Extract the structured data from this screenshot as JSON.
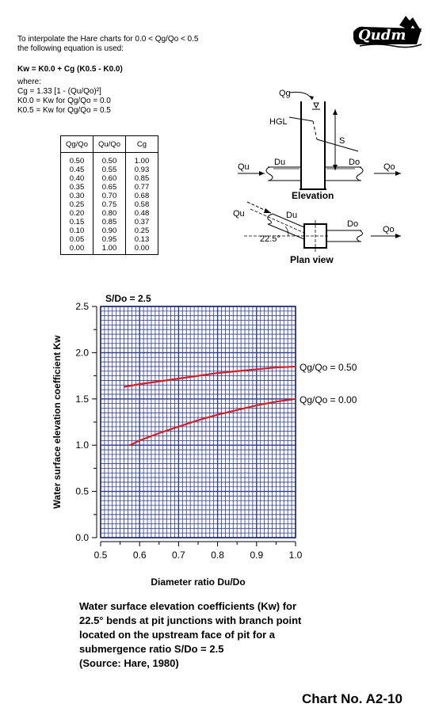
{
  "header": {
    "logo_text": "Qudm",
    "intro_line1": "To interpolate the Hare charts for 0.0 < Qg/Qo < 0.5",
    "intro_line2": "the following equation is used:",
    "equation": "Kw = K0.0 + Cg (K0.5 - K0.0)",
    "where": "where:",
    "def_cg": "Cg = 1.33 [1 - (Qu/Qo)²]",
    "def_k00": "K0.0 = Kw for Qg/Qo = 0.0",
    "def_k05": "K0.5 = Kw for Qg/Qo = 0.5"
  },
  "table": {
    "headers": [
      "Qg/Qo",
      "Qu/Qo",
      "Cg"
    ],
    "rows": [
      [
        "0.50",
        "0.50",
        "1.00"
      ],
      [
        "0.45",
        "0.55",
        "0.93"
      ],
      [
        "0.40",
        "0.60",
        "0.85"
      ],
      [
        "0.35",
        "0.65",
        "0.77"
      ],
      [
        "0.30",
        "0.70",
        "0.68"
      ],
      [
        "0.25",
        "0.75",
        "0.58"
      ],
      [
        "0.20",
        "0.80",
        "0.48"
      ],
      [
        "0.15",
        "0.85",
        "0.37"
      ],
      [
        "0.10",
        "0.90",
        "0.25"
      ],
      [
        "0.05",
        "0.95",
        "0.13"
      ],
      [
        "0.00",
        "1.00",
        "0.00"
      ]
    ]
  },
  "diagram": {
    "qg": "Qg",
    "hgl": "HGL",
    "s": "S",
    "qu": "Qu",
    "du": "Du",
    "do": "Do",
    "qo": "Qo",
    "elevation": "Elevation",
    "plan_view": "Plan view",
    "angle": "22.5°"
  },
  "chart_data": {
    "type": "line",
    "title": "S/Do = 2.5",
    "xlabel": "Diameter ratio Du/Do",
    "ylabel": "Water surface elevation coefficient Kw",
    "xlim": [
      0.5,
      1.0
    ],
    "ylim": [
      0.0,
      2.5
    ],
    "xticks": [
      "0.5",
      "0.6",
      "0.7",
      "0.8",
      "0.9",
      "1.0"
    ],
    "yticks": [
      "0.0",
      "0.5",
      "1.0",
      "1.5",
      "2.0",
      "2.5"
    ],
    "grid": true,
    "series": [
      {
        "name": "Qg/Qo = 0.50",
        "color": "#d0202a",
        "x": [
          0.56,
          0.6,
          0.65,
          0.7,
          0.75,
          0.8,
          0.85,
          0.9,
          0.95,
          1.0
        ],
        "y": [
          1.63,
          1.66,
          1.69,
          1.72,
          1.75,
          1.78,
          1.8,
          1.82,
          1.84,
          1.85
        ]
      },
      {
        "name": "Qg/Qo = 0.00",
        "color": "#d0202a",
        "x": [
          0.575,
          0.6,
          0.65,
          0.7,
          0.75,
          0.8,
          0.85,
          0.9,
          0.95,
          1.0
        ],
        "y": [
          1.0,
          1.05,
          1.13,
          1.2,
          1.27,
          1.33,
          1.38,
          1.43,
          1.47,
          1.5
        ]
      }
    ]
  },
  "caption": {
    "line1": "Water surface elevation coefficients (Kw) for",
    "line2": "22.5° bends at pit junctions with branch point",
    "line3": "located on the upstream face of pit for a",
    "line4": "submergence ratio S/Do = 2.5",
    "line5": "(Source: Hare, 1980)"
  },
  "footer": {
    "chart_no": "Chart No. A2-10"
  }
}
